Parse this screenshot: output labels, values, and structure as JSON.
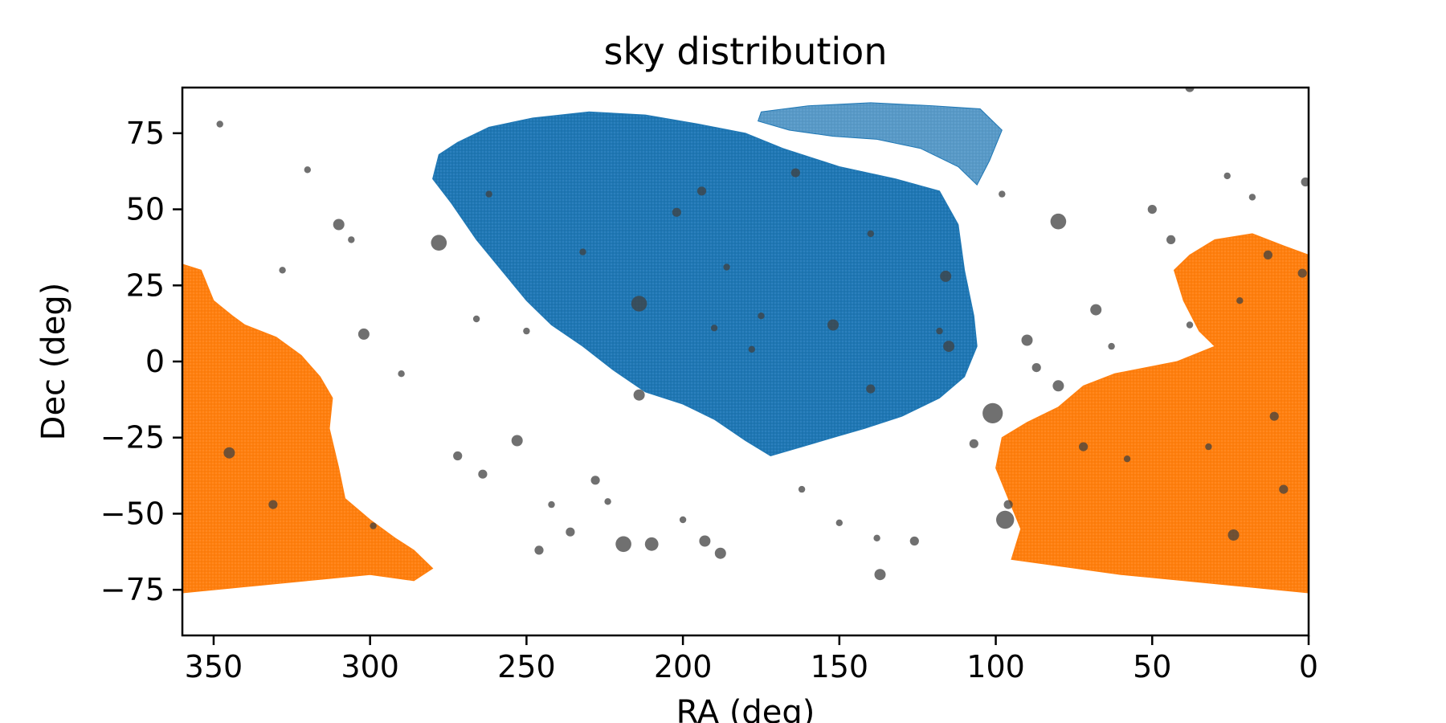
{
  "chart_data": {
    "type": "scatter",
    "title": "sky distribution",
    "xlabel": "RA (deg)",
    "ylabel": "Dec (deg)",
    "xlim": [
      360,
      0
    ],
    "ylim": [
      -90,
      90
    ],
    "x_inverted": true,
    "grid": false,
    "xticks": [
      350,
      300,
      250,
      200,
      150,
      100,
      50,
      0
    ],
    "yticks": [
      75,
      50,
      25,
      0,
      -25,
      -50,
      -75
    ],
    "series": [
      {
        "color": "#1f77b4",
        "style": "dense-survey-footprint",
        "footprint_outline": [
          [
            278,
            68
          ],
          [
            272,
            72
          ],
          [
            262,
            77
          ],
          [
            248,
            80
          ],
          [
            230,
            82
          ],
          [
            212,
            81
          ],
          [
            195,
            78
          ],
          [
            180,
            75
          ],
          [
            168,
            70
          ],
          [
            150,
            64
          ],
          [
            132,
            60
          ],
          [
            118,
            56
          ],
          [
            112,
            45
          ],
          [
            110,
            30
          ],
          [
            107,
            15
          ],
          [
            106,
            5
          ],
          [
            110,
            -5
          ],
          [
            118,
            -12
          ],
          [
            130,
            -18
          ],
          [
            142,
            -22
          ],
          [
            152,
            -25
          ],
          [
            162,
            -28
          ],
          [
            172,
            -31
          ],
          [
            180,
            -26
          ],
          [
            190,
            -19
          ],
          [
            200,
            -14
          ],
          [
            212,
            -10
          ],
          [
            222,
            -3
          ],
          [
            232,
            5
          ],
          [
            242,
            12
          ],
          [
            250,
            20
          ],
          [
            258,
            30
          ],
          [
            266,
            40
          ],
          [
            274,
            52
          ],
          [
            280,
            60
          ]
        ],
        "north_patch_outline": [
          [
            175,
            82
          ],
          [
            160,
            84
          ],
          [
            140,
            85
          ],
          [
            120,
            84
          ],
          [
            105,
            83
          ],
          [
            98,
            76
          ],
          [
            102,
            66
          ],
          [
            106,
            58
          ],
          [
            112,
            64
          ],
          [
            124,
            70
          ],
          [
            138,
            73
          ],
          [
            152,
            74
          ],
          [
            166,
            76
          ],
          [
            176,
            79
          ]
        ]
      },
      {
        "color": "#ff7f0e",
        "style": "dense-survey-footprint",
        "footprint_outline_left": [
          [
            360,
            32
          ],
          [
            354,
            30
          ],
          [
            350,
            20
          ],
          [
            344,
            15
          ],
          [
            340,
            12
          ],
          [
            330,
            8
          ],
          [
            322,
            2
          ],
          [
            316,
            -5
          ],
          [
            312,
            -12
          ],
          [
            313,
            -22
          ],
          [
            310,
            -35
          ],
          [
            308,
            -45
          ],
          [
            300,
            -52
          ],
          [
            292,
            -58
          ],
          [
            286,
            -62
          ],
          [
            280,
            -68
          ],
          [
            286,
            -72
          ],
          [
            300,
            -70
          ],
          [
            320,
            -72
          ],
          [
            340,
            -74
          ],
          [
            360,
            -76
          ]
        ],
        "footprint_outline_right": [
          [
            0,
            35
          ],
          [
            8,
            38
          ],
          [
            18,
            42
          ],
          [
            30,
            40
          ],
          [
            38,
            35
          ],
          [
            43,
            30
          ],
          [
            40,
            20
          ],
          [
            35,
            10
          ],
          [
            30,
            5
          ],
          [
            42,
            0
          ],
          [
            52,
            -2
          ],
          [
            62,
            -4
          ],
          [
            72,
            -8
          ],
          [
            80,
            -15
          ],
          [
            90,
            -20
          ],
          [
            98,
            -25
          ],
          [
            100,
            -35
          ],
          [
            96,
            -45
          ],
          [
            92,
            -55
          ],
          [
            95,
            -65
          ],
          [
            60,
            -70
          ],
          [
            40,
            -72
          ],
          [
            20,
            -74
          ],
          [
            0,
            -76
          ]
        ]
      },
      {
        "color": "#404040",
        "style": "sized-points",
        "points": [
          [
            278,
            39,
            7
          ],
          [
            214,
            19,
            7
          ],
          [
            101,
            -17,
            9
          ],
          [
            80,
            46,
            7
          ],
          [
            97,
            -52,
            8
          ],
          [
            219,
            -60,
            7
          ],
          [
            210,
            -60,
            6
          ],
          [
            193,
            -59,
            5
          ],
          [
            188,
            -63,
            5
          ],
          [
            345,
            -30,
            5
          ],
          [
            331,
            -47,
            4
          ],
          [
            302,
            9,
            5
          ],
          [
            310,
            45,
            5
          ],
          [
            253,
            -26,
            5
          ],
          [
            264,
            -37,
            4
          ],
          [
            116,
            28,
            5
          ],
          [
            115,
            5,
            5
          ],
          [
            152,
            12,
            5
          ],
          [
            90,
            7,
            5
          ],
          [
            80,
            -8,
            5
          ],
          [
            87,
            -2,
            4
          ],
          [
            24,
            -57,
            5
          ],
          [
            11,
            -18,
            4
          ],
          [
            13,
            35,
            4
          ],
          [
            2,
            29,
            4
          ],
          [
            68,
            17,
            5
          ],
          [
            50,
            50,
            4
          ],
          [
            44,
            40,
            4
          ],
          [
            1,
            59,
            4
          ],
          [
            214,
            -11,
            5
          ],
          [
            140,
            -9,
            4
          ],
          [
            202,
            49,
            4
          ],
          [
            194,
            56,
            4
          ],
          [
            164,
            62,
            4
          ],
          [
            262,
            55,
            3
          ],
          [
            272,
            -31,
            4
          ],
          [
            228,
            -39,
            4
          ],
          [
            236,
            -56,
            4
          ],
          [
            246,
            -62,
            4
          ],
          [
            137,
            -70,
            5
          ],
          [
            126,
            -59,
            4
          ],
          [
            175,
            15,
            3
          ],
          [
            186,
            31,
            3
          ],
          [
            118,
            10,
            3
          ],
          [
            96,
            -47,
            4
          ],
          [
            107,
            -27,
            4
          ],
          [
            72,
            -28,
            4
          ],
          [
            58,
            -32,
            3
          ],
          [
            32,
            -28,
            3
          ],
          [
            8,
            -42,
            4
          ],
          [
            18,
            54,
            3
          ],
          [
            26,
            61,
            3
          ],
          [
            38,
            90,
            4
          ],
          [
            320,
            63,
            3
          ],
          [
            306,
            40,
            3
          ],
          [
            328,
            30,
            3
          ],
          [
            348,
            78,
            3
          ],
          [
            290,
            -4,
            3
          ],
          [
            299,
            -54,
            3
          ],
          [
            242,
            -47,
            3
          ],
          [
            224,
            -46,
            3
          ],
          [
            200,
            -52,
            3
          ],
          [
            162,
            -42,
            3
          ],
          [
            150,
            -53,
            3
          ],
          [
            138,
            -58,
            3
          ],
          [
            98,
            55,
            3
          ],
          [
            38,
            12,
            3
          ],
          [
            22,
            20,
            3
          ],
          [
            63,
            5,
            3
          ],
          [
            140,
            42,
            3
          ],
          [
            178,
            4,
            3
          ],
          [
            190,
            11,
            3
          ],
          [
            232,
            36,
            3
          ],
          [
            250,
            10,
            3
          ],
          [
            266,
            14,
            3
          ]
        ]
      }
    ]
  }
}
